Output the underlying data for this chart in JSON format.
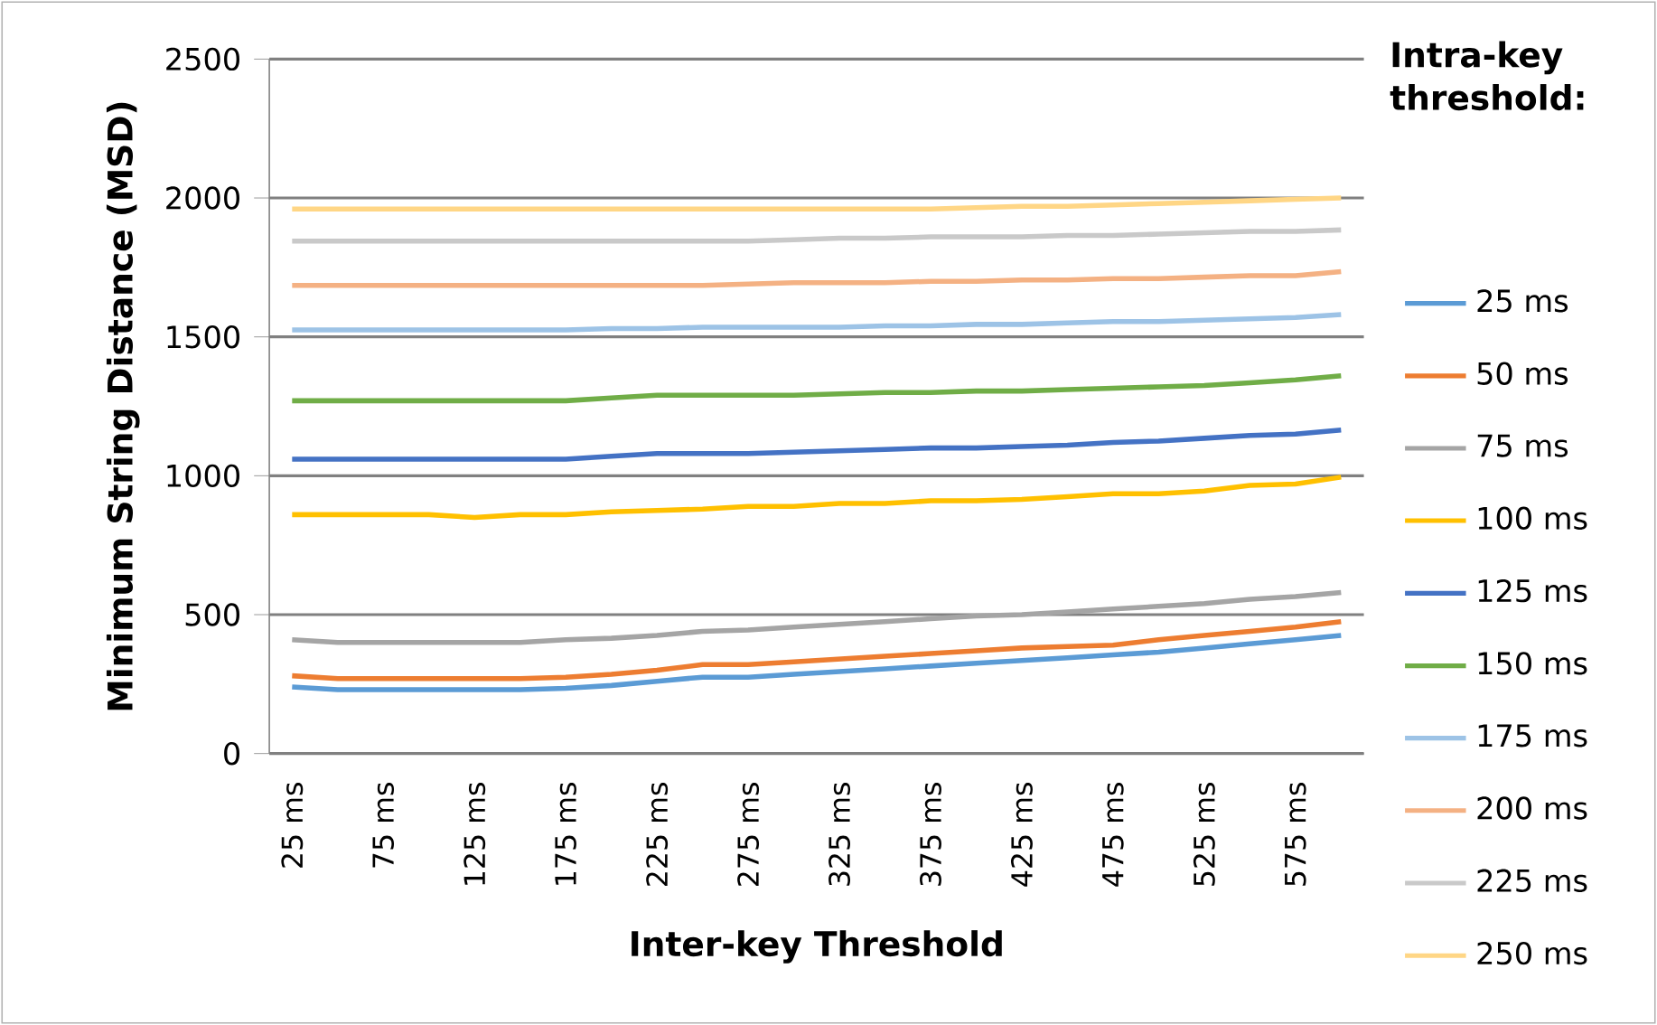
{
  "chart_data": {
    "type": "line",
    "xlabel": "Inter-key Threshold",
    "ylabel": "Minimum String Distance (MSD)",
    "legend_title": "Intra-key threshold:",
    "legend": "right",
    "grid": "y",
    "marker": "none",
    "line_style": "solid",
    "categories": [
      "25 ms",
      null,
      "75 ms",
      null,
      "125 ms",
      null,
      "175 ms",
      null,
      "225 ms",
      null,
      "275 ms",
      null,
      "325 ms",
      null,
      "375 ms",
      null,
      "425 ms",
      null,
      "475 ms",
      null,
      "525 ms",
      null,
      "575 ms",
      null
    ],
    "ylim": [
      0,
      2500
    ],
    "yticks": [
      0,
      500,
      1000,
      1500,
      2000,
      2500
    ],
    "series": [
      {
        "name": "25 ms",
        "color": "#5b9bd5",
        "values": [
          240,
          230,
          230,
          230,
          230,
          230,
          235,
          245,
          260,
          275,
          275,
          285,
          295,
          305,
          315,
          325,
          335,
          345,
          355,
          365,
          380,
          395,
          410,
          425
        ]
      },
      {
        "name": "50 ms",
        "color": "#ed7d31",
        "values": [
          280,
          270,
          270,
          270,
          270,
          270,
          275,
          285,
          300,
          320,
          320,
          330,
          340,
          350,
          360,
          370,
          380,
          385,
          390,
          410,
          425,
          440,
          455,
          475
        ]
      },
      {
        "name": "75 ms",
        "color": "#a5a5a5",
        "values": [
          410,
          400,
          400,
          400,
          400,
          400,
          410,
          415,
          425,
          440,
          445,
          455,
          465,
          475,
          485,
          495,
          500,
          510,
          520,
          530,
          540,
          555,
          565,
          580
        ]
      },
      {
        "name": "100 ms",
        "color": "#ffc000",
        "values": [
          860,
          860,
          860,
          860,
          850,
          860,
          860,
          870,
          875,
          880,
          890,
          890,
          900,
          900,
          910,
          910,
          915,
          925,
          935,
          935,
          945,
          965,
          970,
          995
        ]
      },
      {
        "name": "125 ms",
        "color": "#4472c4",
        "values": [
          1060,
          1060,
          1060,
          1060,
          1060,
          1060,
          1060,
          1070,
          1080,
          1080,
          1080,
          1085,
          1090,
          1095,
          1100,
          1100,
          1105,
          1110,
          1120,
          1125,
          1135,
          1145,
          1150,
          1165
        ]
      },
      {
        "name": "150 ms",
        "color": "#70ad47",
        "values": [
          1270,
          1270,
          1270,
          1270,
          1270,
          1270,
          1270,
          1280,
          1290,
          1290,
          1290,
          1290,
          1295,
          1300,
          1300,
          1305,
          1305,
          1310,
          1315,
          1320,
          1325,
          1335,
          1345,
          1360
        ]
      },
      {
        "name": "175 ms",
        "color": "#9dc3e6",
        "values": [
          1525,
          1525,
          1525,
          1525,
          1525,
          1525,
          1525,
          1530,
          1530,
          1535,
          1535,
          1535,
          1535,
          1540,
          1540,
          1545,
          1545,
          1550,
          1555,
          1555,
          1560,
          1565,
          1570,
          1580
        ]
      },
      {
        "name": "200 ms",
        "color": "#f4b183",
        "values": [
          1685,
          1685,
          1685,
          1685,
          1685,
          1685,
          1685,
          1685,
          1685,
          1685,
          1690,
          1695,
          1695,
          1695,
          1700,
          1700,
          1705,
          1705,
          1710,
          1710,
          1715,
          1720,
          1720,
          1735
        ]
      },
      {
        "name": "225 ms",
        "color": "#c9c9c9",
        "values": [
          1845,
          1845,
          1845,
          1845,
          1845,
          1845,
          1845,
          1845,
          1845,
          1845,
          1845,
          1850,
          1855,
          1855,
          1860,
          1860,
          1860,
          1865,
          1865,
          1870,
          1875,
          1880,
          1880,
          1885
        ]
      },
      {
        "name": "250 ms",
        "color": "#ffd685",
        "values": [
          1960,
          1960,
          1960,
          1960,
          1960,
          1960,
          1960,
          1960,
          1960,
          1960,
          1960,
          1960,
          1960,
          1960,
          1960,
          1965,
          1970,
          1970,
          1975,
          1980,
          1985,
          1990,
          1995,
          2000
        ]
      }
    ]
  }
}
